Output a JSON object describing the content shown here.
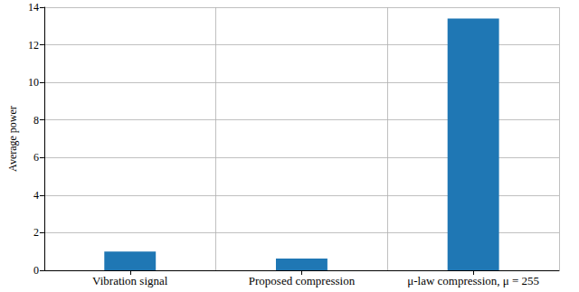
{
  "chart_data": {
    "type": "bar",
    "y_label": "Average power",
    "categories": [
      "Vibration signal",
      "Proposed compression",
      "μ-law compression, μ = 255"
    ],
    "values": [
      1.0,
      0.62,
      13.4
    ],
    "color": "#1f77b4",
    "ylim": [
      0,
      14
    ],
    "yticks": [
      0,
      2,
      4,
      6,
      8,
      10,
      12,
      14
    ],
    "grid": true
  }
}
